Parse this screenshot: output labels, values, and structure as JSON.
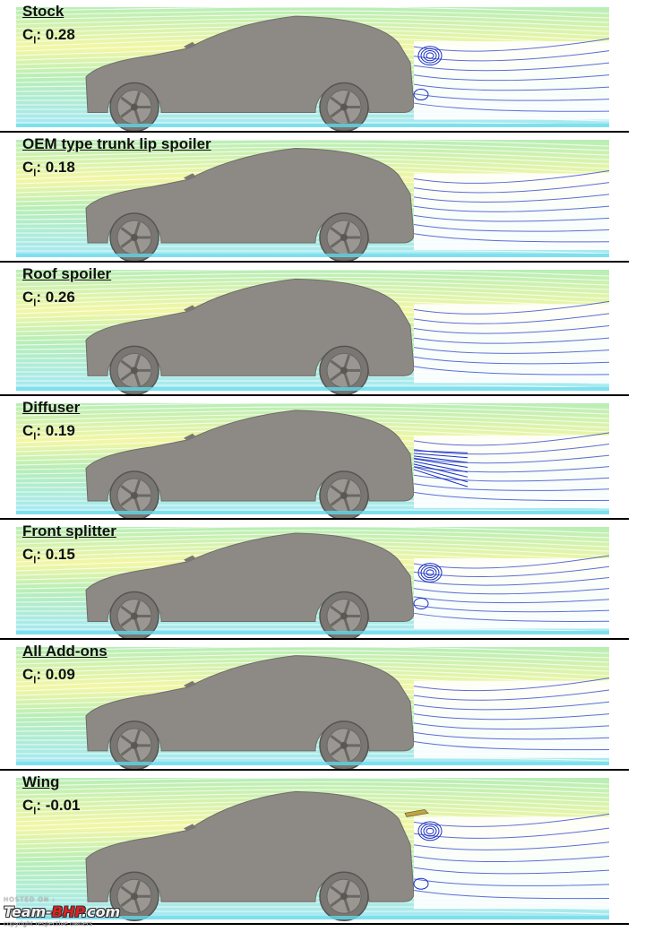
{
  "panels": [
    {
      "title": "Stock",
      "coef_label": "C",
      "coef_sub": "l",
      "coef_value": ": 0.28",
      "wake": "vortex"
    },
    {
      "title": "OEM type trunk lip spoiler",
      "coef_label": "C",
      "coef_sub": "l",
      "coef_value": ": 0.18",
      "wake": "open"
    },
    {
      "title": "Roof spoiler",
      "coef_label": "C",
      "coef_sub": "l",
      "coef_value": ": 0.26",
      "wake": "open"
    },
    {
      "title": "Diffuser",
      "coef_label": "C",
      "coef_sub": "l",
      "coef_value": ": 0.19",
      "wake": "dense"
    },
    {
      "title": "Front splitter",
      "coef_label": "C",
      "coef_sub": "l",
      "coef_value": ": 0.15",
      "wake": "vortex"
    },
    {
      "title": "All Add-ons",
      "coef_label": "C",
      "coef_sub": "l",
      "coef_value": ": 0.09",
      "wake": "open"
    },
    {
      "title": "Wing",
      "coef_label": "C",
      "coef_sub": "l",
      "coef_value": ": -0.01",
      "wake": "wing"
    }
  ],
  "watermark": {
    "hosted": "HOSTED ON :",
    "brand_a": "Team-",
    "brand_b": "BHP",
    "brand_c": ".com",
    "copyright": "copyright respective owners"
  },
  "colors": {
    "car_body": "#8d8a86",
    "streamline_green": "#7ee07a",
    "streamline_yellow": "#e8f05a",
    "streamline_cyan": "#5fd8e8",
    "wake_blue": "#1a2fc8"
  }
}
